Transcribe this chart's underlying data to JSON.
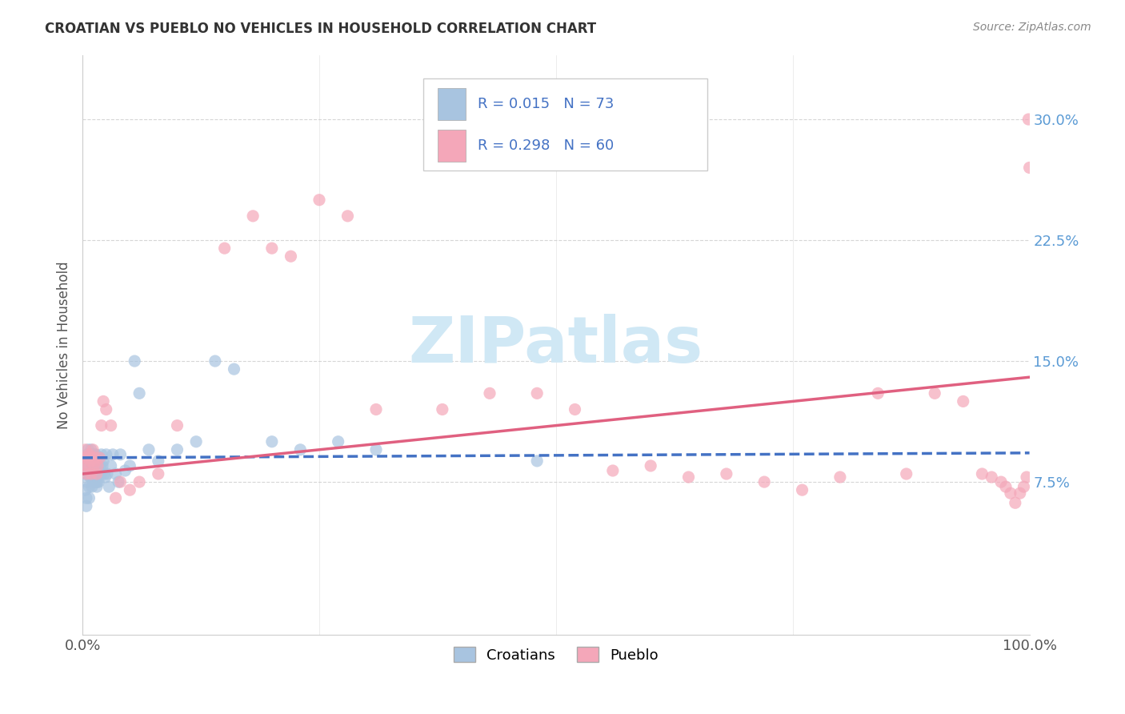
{
  "title": "CROATIAN VS PUEBLO NO VEHICLES IN HOUSEHOLD CORRELATION CHART",
  "source": "Source: ZipAtlas.com",
  "ylabel": "No Vehicles in Household",
  "xlim": [
    0.0,
    1.0
  ],
  "ylim": [
    -0.02,
    0.34
  ],
  "xtick_positions": [
    0.0,
    0.25,
    0.5,
    0.75,
    1.0
  ],
  "xtick_labels": [
    "0.0%",
    "",
    "",
    "",
    "100.0%"
  ],
  "ytick_positions": [
    0.075,
    0.15,
    0.225,
    0.3
  ],
  "ytick_labels": [
    "7.5%",
    "15.0%",
    "22.5%",
    "30.0%"
  ],
  "croatian_color": "#a8c4e0",
  "pueblo_color": "#f4a7b9",
  "croatian_line_color": "#4472c4",
  "pueblo_line_color": "#e06080",
  "ytick_color": "#5b9bd5",
  "xtick_color": "#555555",
  "background_color": "#ffffff",
  "watermark_text": "ZIPatlas",
  "watermark_color": "#d0e8f5",
  "legend_label_croatian": "R = 0.015",
  "legend_N_croatian": "N = 73",
  "legend_label_pueblo": "R = 0.298",
  "legend_N_pueblo": "N = 60",
  "legend_text_color": "#4472c4",
  "croatian_x": [
    0.001,
    0.002,
    0.003,
    0.003,
    0.004,
    0.004,
    0.005,
    0.005,
    0.005,
    0.006,
    0.006,
    0.007,
    0.007,
    0.007,
    0.008,
    0.008,
    0.008,
    0.009,
    0.009,
    0.009,
    0.01,
    0.01,
    0.01,
    0.011,
    0.011,
    0.011,
    0.012,
    0.012,
    0.013,
    0.013,
    0.013,
    0.014,
    0.014,
    0.014,
    0.015,
    0.015,
    0.015,
    0.016,
    0.016,
    0.017,
    0.017,
    0.018,
    0.018,
    0.019,
    0.02,
    0.02,
    0.021,
    0.022,
    0.023,
    0.024,
    0.025,
    0.026,
    0.028,
    0.03,
    0.032,
    0.035,
    0.038,
    0.04,
    0.045,
    0.05,
    0.055,
    0.06,
    0.07,
    0.08,
    0.1,
    0.12,
    0.14,
    0.16,
    0.2,
    0.23,
    0.27,
    0.31,
    0.48
  ],
  "croatian_y": [
    0.09,
    0.085,
    0.08,
    0.07,
    0.065,
    0.06,
    0.092,
    0.085,
    0.075,
    0.095,
    0.088,
    0.08,
    0.072,
    0.065,
    0.092,
    0.085,
    0.078,
    0.095,
    0.088,
    0.078,
    0.09,
    0.082,
    0.072,
    0.092,
    0.085,
    0.075,
    0.09,
    0.082,
    0.092,
    0.085,
    0.075,
    0.092,
    0.085,
    0.075,
    0.09,
    0.082,
    0.072,
    0.088,
    0.075,
    0.085,
    0.075,
    0.09,
    0.08,
    0.085,
    0.092,
    0.08,
    0.085,
    0.088,
    0.08,
    0.078,
    0.092,
    0.08,
    0.072,
    0.085,
    0.092,
    0.08,
    0.075,
    0.092,
    0.082,
    0.085,
    0.15,
    0.13,
    0.095,
    0.088,
    0.095,
    0.1,
    0.15,
    0.145,
    0.1,
    0.095,
    0.1,
    0.095,
    0.088
  ],
  "pueblo_x": [
    0.001,
    0.002,
    0.003,
    0.004,
    0.005,
    0.006,
    0.007,
    0.008,
    0.009,
    0.01,
    0.011,
    0.012,
    0.013,
    0.014,
    0.015,
    0.016,
    0.018,
    0.02,
    0.022,
    0.025,
    0.03,
    0.035,
    0.04,
    0.05,
    0.06,
    0.08,
    0.1,
    0.15,
    0.18,
    0.2,
    0.22,
    0.25,
    0.28,
    0.31,
    0.38,
    0.43,
    0.48,
    0.52,
    0.56,
    0.6,
    0.64,
    0.68,
    0.72,
    0.76,
    0.8,
    0.84,
    0.87,
    0.9,
    0.93,
    0.95,
    0.96,
    0.97,
    0.975,
    0.98,
    0.985,
    0.99,
    0.994,
    0.997,
    0.999,
    1.0
  ],
  "pueblo_y": [
    0.09,
    0.085,
    0.095,
    0.08,
    0.09,
    0.085,
    0.092,
    0.088,
    0.08,
    0.09,
    0.095,
    0.085,
    0.09,
    0.088,
    0.08,
    0.085,
    0.09,
    0.11,
    0.125,
    0.12,
    0.11,
    0.065,
    0.075,
    0.07,
    0.075,
    0.08,
    0.11,
    0.22,
    0.24,
    0.22,
    0.215,
    0.25,
    0.24,
    0.12,
    0.12,
    0.13,
    0.13,
    0.12,
    0.082,
    0.085,
    0.078,
    0.08,
    0.075,
    0.07,
    0.078,
    0.13,
    0.08,
    0.13,
    0.125,
    0.08,
    0.078,
    0.075,
    0.072,
    0.068,
    0.062,
    0.068,
    0.072,
    0.078,
    0.3,
    0.27
  ]
}
